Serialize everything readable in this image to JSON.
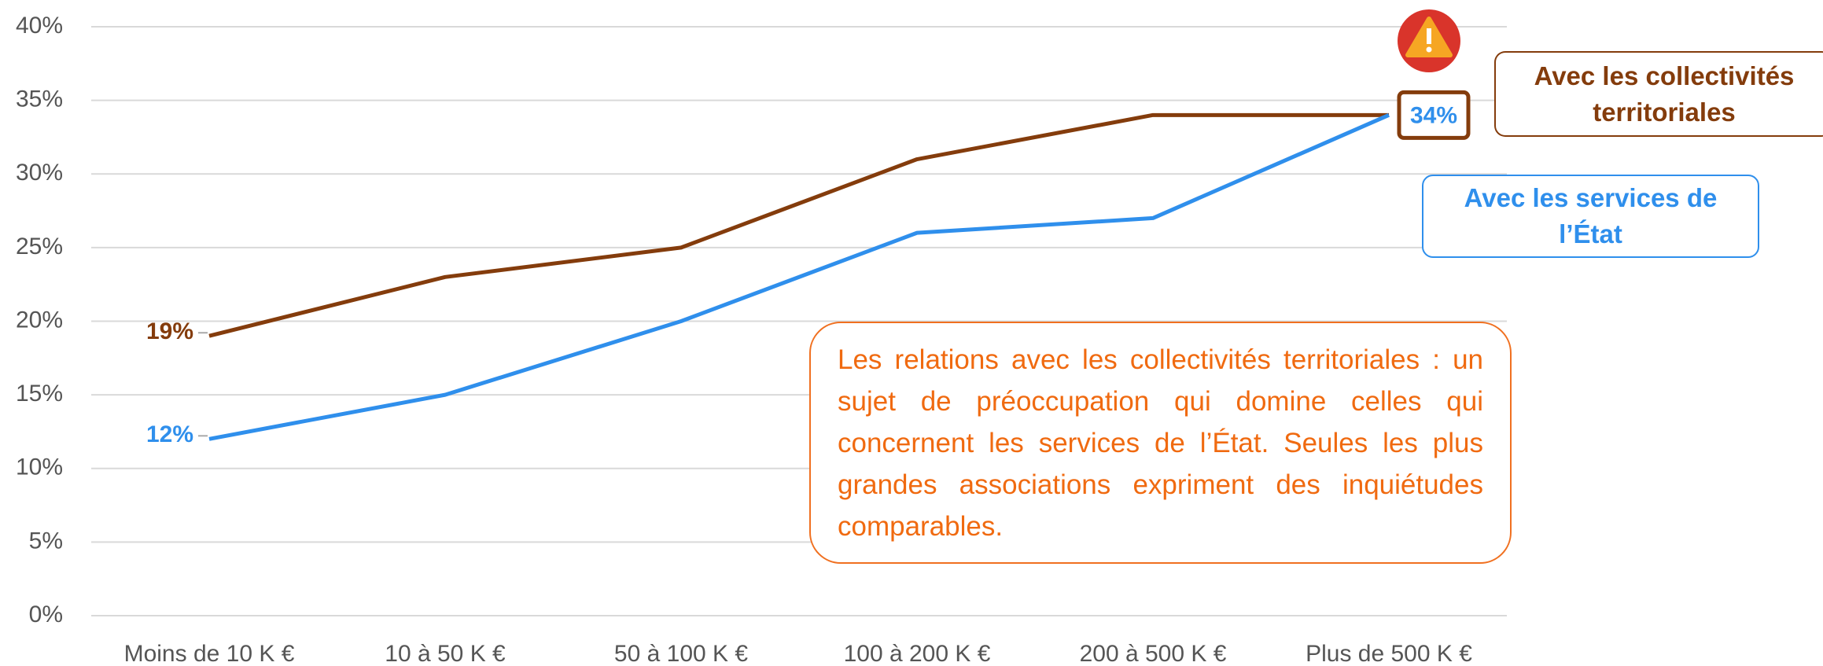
{
  "chart_data": {
    "type": "line",
    "categories": [
      "Moins de 10 K €",
      "10 à 50 K €",
      "50 à 100 K €",
      "100 à 200 K €",
      "200 à 500 K €",
      "Plus de 500 K €"
    ],
    "series": [
      {
        "name": "Avec les collectivités territoriales",
        "color": "#843c0c",
        "values": [
          19,
          23,
          25,
          31,
          34,
          34
        ],
        "value_labels": [
          "19%",
          null,
          null,
          null,
          null,
          null
        ]
      },
      {
        "name": "Avec les services de l’État",
        "color": "#2f8fec",
        "values": [
          12,
          15,
          20,
          26,
          27,
          34
        ],
        "value_labels": [
          "12%",
          null,
          null,
          null,
          null,
          "34%"
        ]
      }
    ],
    "ylim": [
      0,
      40
    ],
    "yticks": [
      {
        "value": 0,
        "label": "0%"
      },
      {
        "value": 5,
        "label": "5%"
      },
      {
        "value": 10,
        "label": "10%"
      },
      {
        "value": 15,
        "label": "15%"
      },
      {
        "value": 20,
        "label": "20%"
      },
      {
        "value": 25,
        "label": "25%"
      },
      {
        "value": 30,
        "label": "30%"
      },
      {
        "value": 35,
        "label": "35%"
      },
      {
        "value": 40,
        "label": "40%"
      }
    ],
    "grid": true,
    "annotation": "Les relations avec les collectivités territoriales : un sujet de préoccupation qui domine celles qui concernent les services de l’État. Seules les plus grandes associations expriment des inquiétudes comparables."
  }
}
